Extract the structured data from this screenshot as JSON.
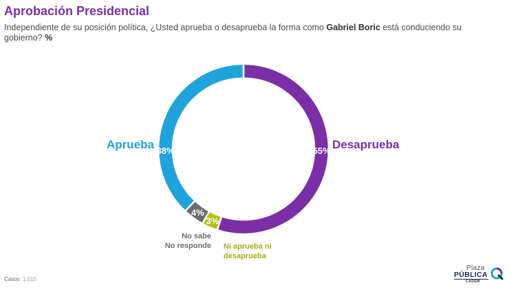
{
  "title": "Aprobación Presidencial",
  "subtitle": {
    "part1": "Independiente de su posición política, ¿Usted aprueba o desaprueba la forma como ",
    "name": "Gabriel Boric",
    "part2": " está conduciendo su gobierno? ",
    "unit": "%"
  },
  "footnote": {
    "label": "Casos",
    "value": "1.015"
  },
  "logo": {
    "plaza": "Plaza",
    "publica": "PÚBLICA",
    "cadem": "CADEM"
  },
  "chart_data": {
    "type": "pie",
    "donut": true,
    "categories": [
      "Desaprueba",
      "Ni aprueba ni desaprueba",
      "No sabe No responde",
      "Aprueba"
    ],
    "values": [
      55,
      3,
      4,
      38
    ],
    "value_labels": [
      "55%",
      "3%",
      "4%",
      "38%"
    ],
    "colors": [
      "#7b2fa6",
      "#b6bd15",
      "#6d6d6d",
      "#1fa3dc"
    ],
    "outside_labels": [
      {
        "category": "Desaprueba",
        "lines": [
          "Desaprueba"
        ],
        "color": "#7b2fa6"
      },
      {
        "category": "Ni aprueba ni desaprueba",
        "lines": [
          "Ni aprueba ni",
          "desaprueba"
        ],
        "color": "#a6ad10"
      },
      {
        "category": "No sabe No responde",
        "lines": [
          "No sabe",
          "No responde"
        ],
        "color": "#6d6d6d"
      },
      {
        "category": "Aprueba",
        "lines": [
          "Aprueba"
        ],
        "color": "#1fa3dc"
      }
    ],
    "start_angle_deg": 0,
    "direction": "clockwise"
  }
}
